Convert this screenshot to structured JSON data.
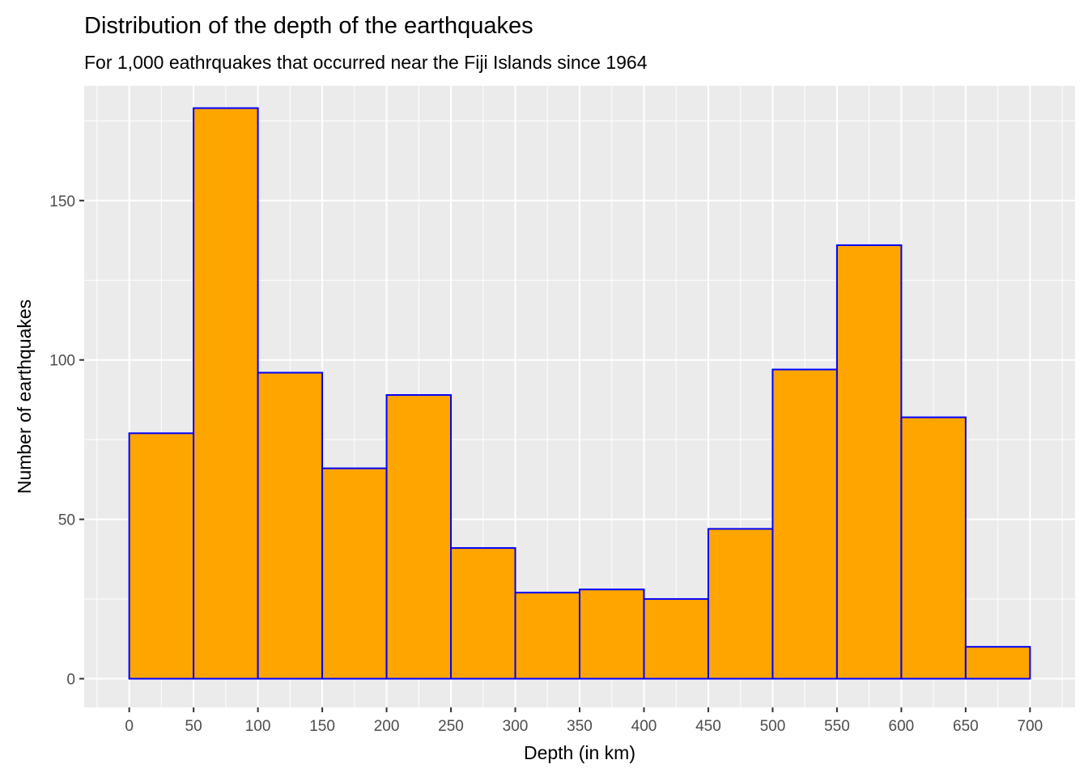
{
  "chart_data": {
    "type": "bar",
    "title": "Distribution of the depth of the earthquakes",
    "subtitle": "For 1,000 eathrquakes that occurred near the Fiji Islands since 1964",
    "xlabel": "Depth (in km)",
    "ylabel": "Number of earthquakes",
    "bin_width": 50,
    "bins": [
      {
        "start": 0,
        "end": 50,
        "count": 77
      },
      {
        "start": 50,
        "end": 100,
        "count": 179
      },
      {
        "start": 100,
        "end": 150,
        "count": 96
      },
      {
        "start": 150,
        "end": 200,
        "count": 66
      },
      {
        "start": 200,
        "end": 250,
        "count": 89
      },
      {
        "start": 250,
        "end": 300,
        "count": 41
      },
      {
        "start": 300,
        "end": 350,
        "count": 27
      },
      {
        "start": 350,
        "end": 400,
        "count": 28
      },
      {
        "start": 400,
        "end": 450,
        "count": 25
      },
      {
        "start": 450,
        "end": 500,
        "count": 47
      },
      {
        "start": 500,
        "end": 550,
        "count": 97
      },
      {
        "start": 550,
        "end": 600,
        "count": 136
      },
      {
        "start": 600,
        "end": 650,
        "count": 82
      },
      {
        "start": 650,
        "end": 700,
        "count": 10
      }
    ],
    "xlim": [
      -35,
      735
    ],
    "ylim": [
      -9,
      186
    ],
    "x_ticks": [
      0,
      50,
      100,
      150,
      200,
      250,
      300,
      350,
      400,
      450,
      500,
      550,
      600,
      650,
      700
    ],
    "y_ticks": [
      0,
      50,
      100,
      150
    ],
    "grid": true,
    "colors": {
      "panel_background": "#EBEBEB",
      "grid": "#FFFFFF",
      "bar_fill": "#FFA500",
      "bar_stroke": "#0000FF",
      "tick_text": "#4D4D4D",
      "text": "#000000"
    }
  }
}
